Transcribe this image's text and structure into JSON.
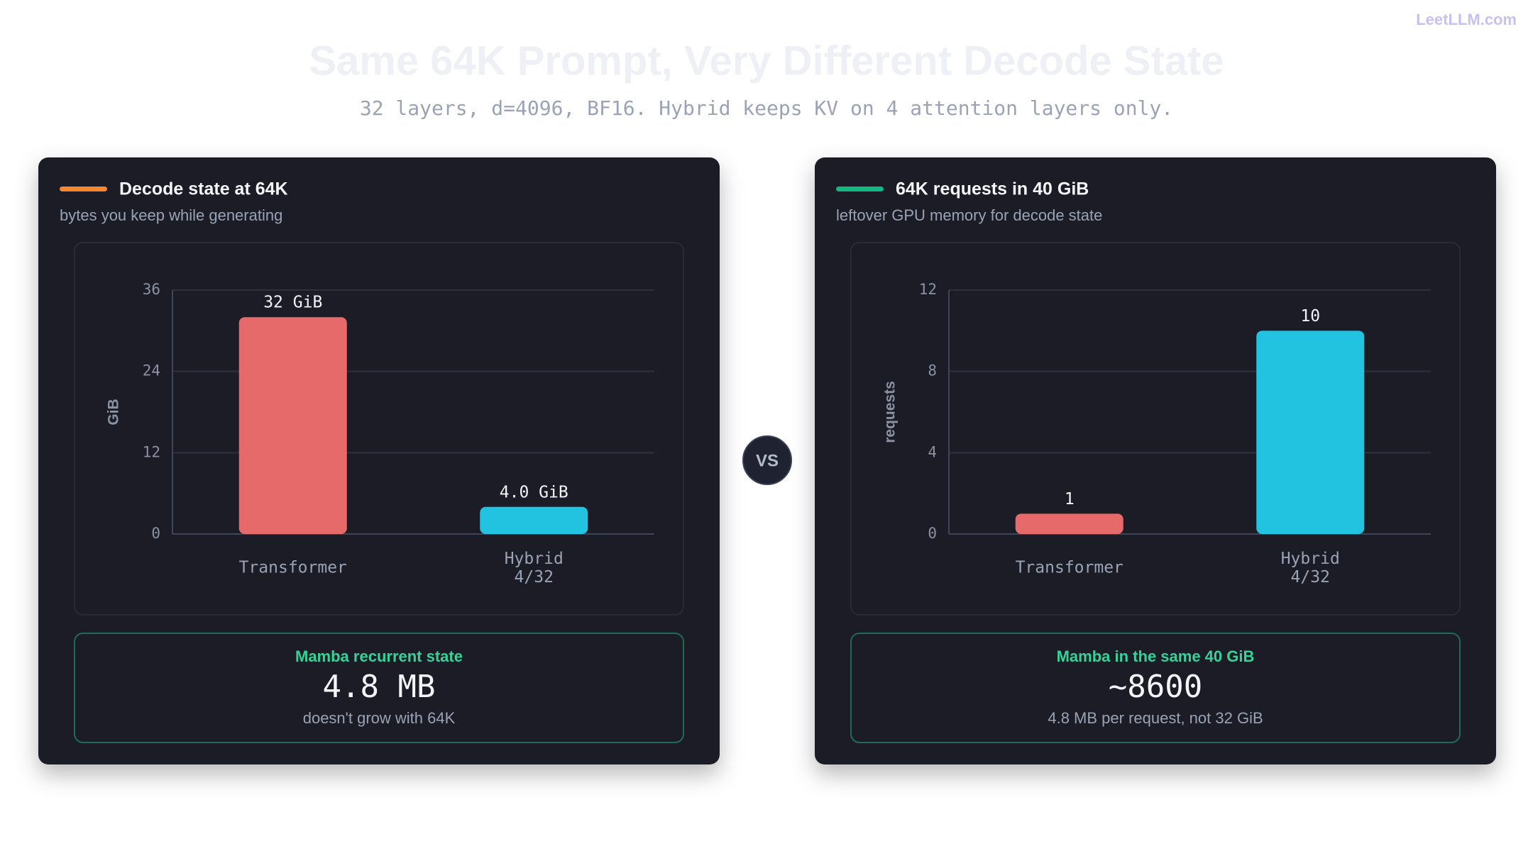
{
  "header": {
    "brand": "LeetLLM.com",
    "title": "Same 64K Prompt, Very Different Decode State",
    "subtitle": "32 layers, d=4096, BF16. Hybrid keeps KV on 4 attention layers only."
  },
  "vs": "VS",
  "chart_data": [
    {
      "type": "bar",
      "title": "Decode state at 64K",
      "subtitle": "bytes you keep while generating",
      "accent": "#f7862f",
      "y_label": "GiB",
      "categories": [
        "Transformer",
        "Hybrid\n4/32"
      ],
      "values": [
        32,
        4.0
      ],
      "value_labels": [
        "32 GiB",
        "4.0 GiB"
      ],
      "colors": [
        "#e76a6a",
        "#22c3e0"
      ],
      "ylim": [
        0,
        36
      ],
      "yticks": [
        0,
        12,
        24,
        36
      ],
      "grid": true,
      "callout": {
        "title": "Mamba recurrent state",
        "value": "4.8 MB",
        "note": "doesn't grow with 64K"
      }
    },
    {
      "type": "bar",
      "title": "64K requests in 40 GiB",
      "subtitle": "leftover GPU memory for decode state",
      "accent": "#10b981",
      "y_label": "requests",
      "categories": [
        "Transformer",
        "Hybrid\n4/32"
      ],
      "values": [
        1,
        10
      ],
      "colors": [
        "#e76a6a",
        "#22c3e0"
      ],
      "ylim": [
        0,
        12
      ],
      "yticks": [
        0,
        4,
        8,
        12
      ],
      "grid": true,
      "callout": {
        "title": "Mamba in the same 40 GiB",
        "value": "~8600",
        "note": "4.8 MB per request, not 32 GiB"
      }
    }
  ]
}
